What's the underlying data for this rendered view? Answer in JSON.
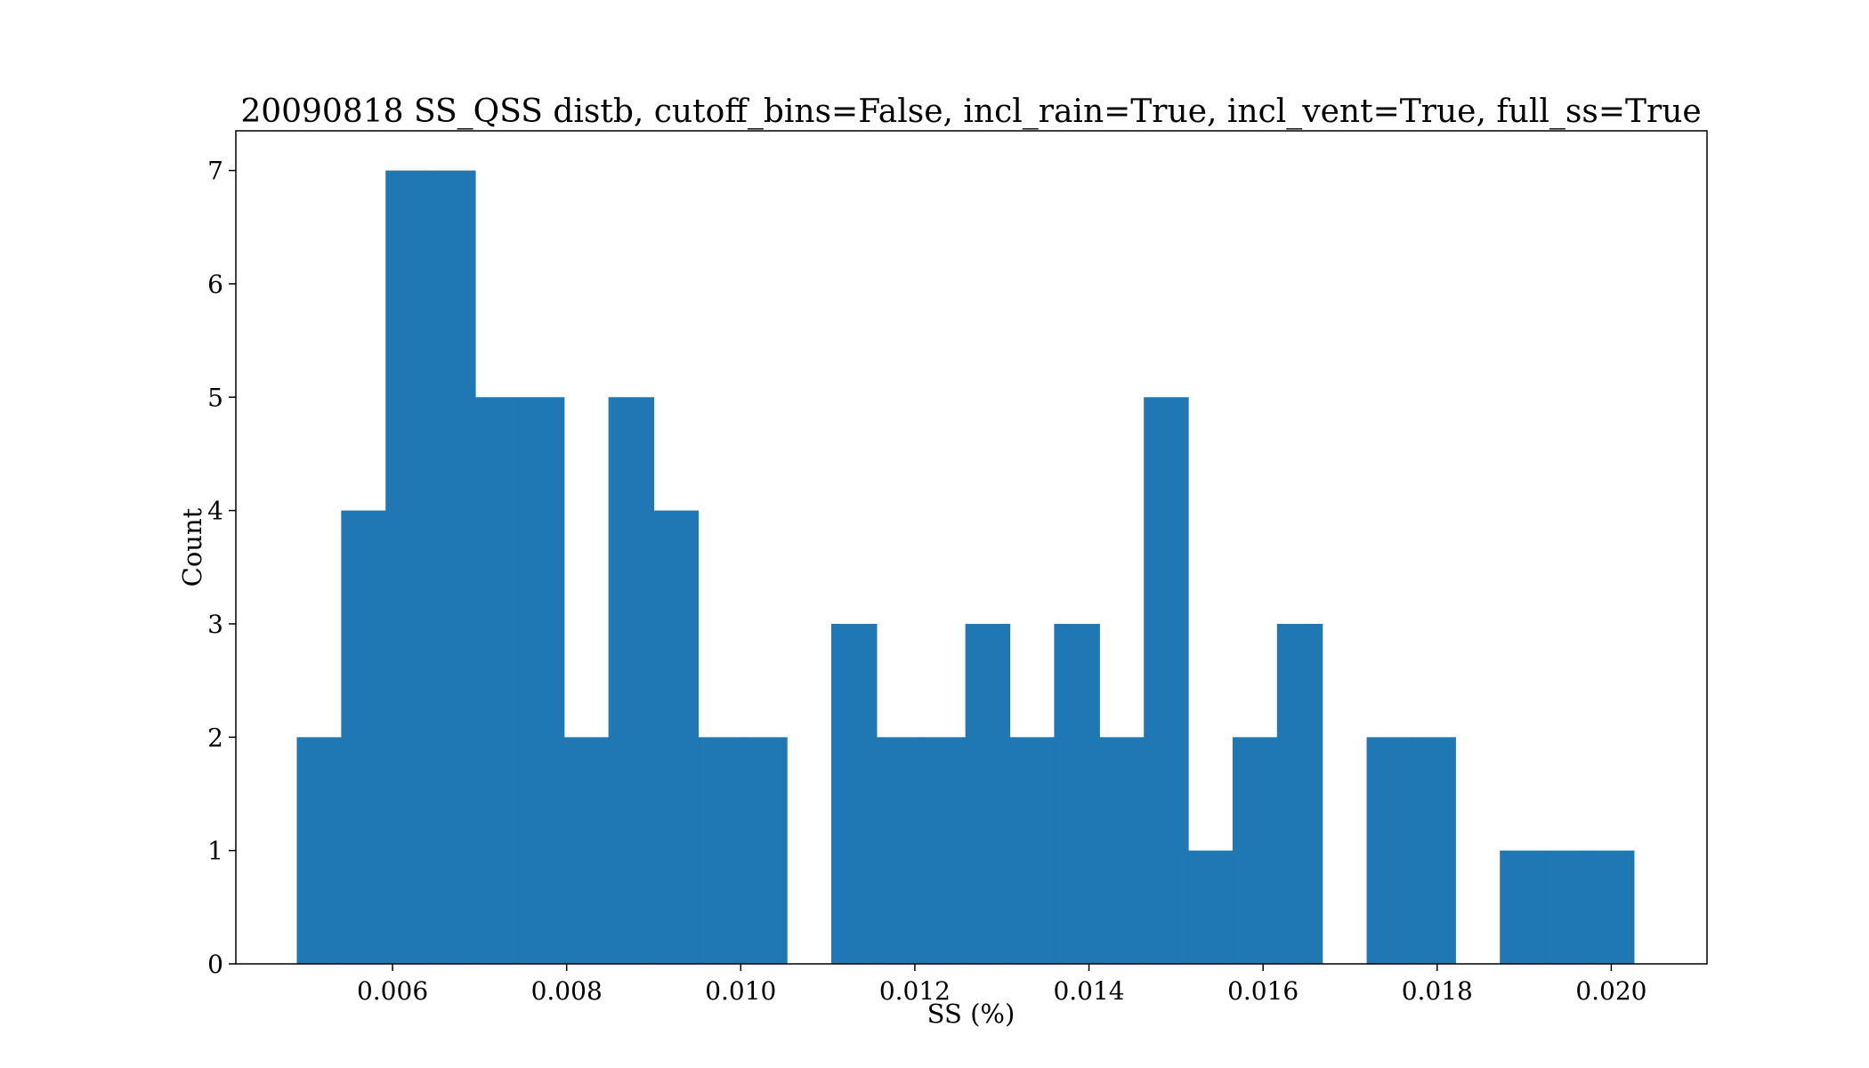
{
  "chart_data": {
    "type": "bar",
    "title": "20090818 SS_QSS distb, cutoff_bins=False, incl_rain=True, incl_vent=True, full_ss=True",
    "xlabel": "SS (%)",
    "ylabel": "Count",
    "xlim": [
      0.0042,
      0.0211
    ],
    "ylim": [
      0,
      7.35
    ],
    "x_ticks": [
      "0.006",
      "0.008",
      "0.010",
      "0.012",
      "0.014",
      "0.016",
      "0.018",
      "0.020"
    ],
    "y_ticks": [
      "0",
      "1",
      "2",
      "3",
      "4",
      "5",
      "6",
      "7"
    ],
    "grid": false,
    "bar_color": "#1f77b4",
    "bin_edges": [
      0.0049,
      0.00541,
      0.00592,
      0.00644,
      0.00695,
      0.00746,
      0.00797,
      0.00848,
      0.009,
      0.00951,
      0.01002,
      0.01053,
      0.01104,
      0.01156,
      0.01207,
      0.01258,
      0.01309,
      0.0136,
      0.01412,
      0.01463,
      0.01514,
      0.01565,
      0.01616,
      0.01668,
      0.01719,
      0.0177,
      0.01821,
      0.01872,
      0.01924,
      0.01975,
      0.02026
    ],
    "counts": [
      2,
      4,
      7,
      7,
      5,
      5,
      2,
      5,
      4,
      2,
      2,
      0,
      3,
      2,
      2,
      3,
      2,
      3,
      2,
      5,
      1,
      2,
      3,
      0,
      2,
      2,
      0,
      1,
      1,
      1
    ]
  }
}
